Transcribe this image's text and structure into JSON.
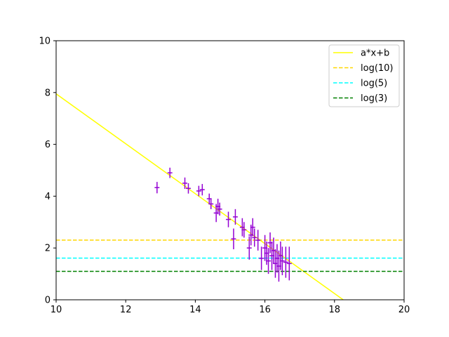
{
  "chart_data": {
    "type": "scatter",
    "title": "",
    "xlabel": "",
    "ylabel": "",
    "xlim": [
      10,
      20
    ],
    "ylim": [
      0,
      10
    ],
    "xticks": [
      10,
      12,
      14,
      16,
      18,
      20
    ],
    "yticks": [
      0,
      2,
      4,
      6,
      8,
      10
    ],
    "xtick_labels": [
      "10",
      "12",
      "14",
      "16",
      "18",
      "20"
    ],
    "ytick_labels": [
      "0",
      "2",
      "4",
      "6",
      "8",
      "10"
    ],
    "grid": false,
    "legend_position": "top-right",
    "errorbar_series": {
      "color": "#9400d3",
      "points": [
        {
          "x": 12.9,
          "y": 4.33,
          "xerr": 0.07,
          "yerr": 0.22
        },
        {
          "x": 13.27,
          "y": 4.9,
          "xerr": 0.07,
          "yerr": 0.2
        },
        {
          "x": 13.7,
          "y": 4.5,
          "xerr": 0.07,
          "yerr": 0.22
        },
        {
          "x": 13.8,
          "y": 4.3,
          "xerr": 0.07,
          "yerr": 0.2
        },
        {
          "x": 14.1,
          "y": 4.2,
          "xerr": 0.07,
          "yerr": 0.2
        },
        {
          "x": 14.2,
          "y": 4.25,
          "xerr": 0.07,
          "yerr": 0.22
        },
        {
          "x": 14.4,
          "y": 3.9,
          "xerr": 0.07,
          "yerr": 0.2
        },
        {
          "x": 14.45,
          "y": 3.7,
          "xerr": 0.07,
          "yerr": 0.2
        },
        {
          "x": 14.6,
          "y": 3.35,
          "xerr": 0.07,
          "yerr": 0.35
        },
        {
          "x": 14.65,
          "y": 3.6,
          "xerr": 0.07,
          "yerr": 0.3
        },
        {
          "x": 14.7,
          "y": 3.5,
          "xerr": 0.07,
          "yerr": 0.25
        },
        {
          "x": 14.95,
          "y": 3.1,
          "xerr": 0.07,
          "yerr": 0.3
        },
        {
          "x": 15.1,
          "y": 2.35,
          "xerr": 0.07,
          "yerr": 0.4
        },
        {
          "x": 15.15,
          "y": 3.2,
          "xerr": 0.07,
          "yerr": 0.3
        },
        {
          "x": 15.35,
          "y": 2.8,
          "xerr": 0.07,
          "yerr": 0.35
        },
        {
          "x": 15.4,
          "y": 2.7,
          "xerr": 0.07,
          "yerr": 0.3
        },
        {
          "x": 15.55,
          "y": 2.0,
          "xerr": 0.07,
          "yerr": 0.45
        },
        {
          "x": 15.6,
          "y": 2.5,
          "xerr": 0.07,
          "yerr": 0.4
        },
        {
          "x": 15.65,
          "y": 2.8,
          "xerr": 0.07,
          "yerr": 0.35
        },
        {
          "x": 15.7,
          "y": 2.4,
          "xerr": 0.07,
          "yerr": 0.35
        },
        {
          "x": 15.8,
          "y": 2.3,
          "xerr": 0.07,
          "yerr": 0.4
        },
        {
          "x": 15.9,
          "y": 1.6,
          "xerr": 0.07,
          "yerr": 0.45
        },
        {
          "x": 16.0,
          "y": 2.0,
          "xerr": 0.07,
          "yerr": 0.5
        },
        {
          "x": 16.05,
          "y": 1.8,
          "xerr": 0.07,
          "yerr": 0.45
        },
        {
          "x": 16.1,
          "y": 1.5,
          "xerr": 0.07,
          "yerr": 0.5
        },
        {
          "x": 16.15,
          "y": 2.2,
          "xerr": 0.07,
          "yerr": 0.4
        },
        {
          "x": 16.2,
          "y": 1.7,
          "xerr": 0.07,
          "yerr": 0.55
        },
        {
          "x": 16.25,
          "y": 1.9,
          "xerr": 0.07,
          "yerr": 0.5
        },
        {
          "x": 16.3,
          "y": 1.4,
          "xerr": 0.07,
          "yerr": 0.55
        },
        {
          "x": 16.35,
          "y": 1.6,
          "xerr": 0.07,
          "yerr": 0.55
        },
        {
          "x": 16.4,
          "y": 1.3,
          "xerr": 0.07,
          "yerr": 0.6
        },
        {
          "x": 16.45,
          "y": 1.7,
          "xerr": 0.07,
          "yerr": 0.55
        },
        {
          "x": 16.5,
          "y": 1.5,
          "xerr": 0.07,
          "yerr": 0.55
        },
        {
          "x": 16.6,
          "y": 1.45,
          "xerr": 0.07,
          "yerr": 0.6
        },
        {
          "x": 16.7,
          "y": 1.4,
          "xerr": 0.07,
          "yerr": 0.65
        }
      ]
    },
    "lines": [
      {
        "name": "a*x+b",
        "type": "linear",
        "x": [
          10,
          18.25
        ],
        "y": [
          7.95,
          0
        ],
        "color": "#ffff00",
        "style": "solid"
      },
      {
        "name": "log(10)",
        "type": "hline",
        "y": 2.3026,
        "color": "#ffd700",
        "style": "dashed"
      },
      {
        "name": "log(5)",
        "type": "hline",
        "y": 1.6094,
        "color": "#00ffff",
        "style": "dashed"
      },
      {
        "name": "log(3)",
        "type": "hline",
        "y": 1.0986,
        "color": "#008000",
        "style": "dashed"
      }
    ]
  }
}
